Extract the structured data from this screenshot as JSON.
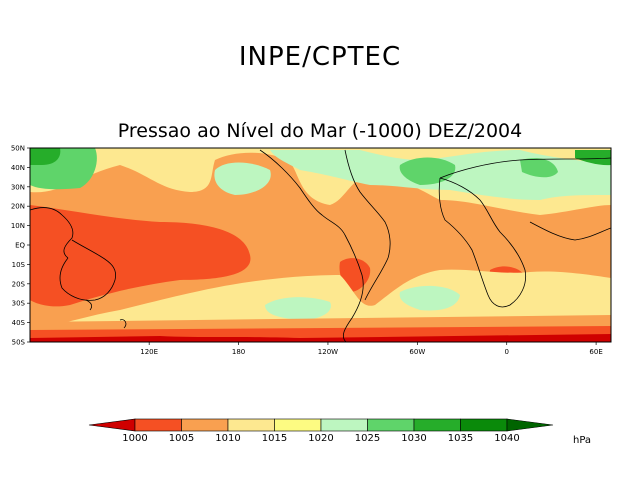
{
  "header": {
    "title": "INPE/CPTEC",
    "subtitle": "Pressao ao Nível do Mar (-1000) DEZ/2004"
  },
  "map": {
    "lat_labels": [
      "50N",
      "40N",
      "30N",
      "20N",
      "10N",
      "EQ",
      "10S",
      "20S",
      "30S",
      "40S",
      "50S"
    ],
    "lon_labels": [
      "120E",
      "180",
      "120W",
      "60W",
      "0",
      "60E"
    ],
    "lat_range": [
      -50,
      50
    ],
    "lon_range": [
      40,
      430
    ],
    "land_color": "#000000",
    "features": [
      "High pressure over North Pacific",
      "High pressure over North Atlantic",
      "Subtropical high South Pacific",
      "Subtropical high South Atlantic",
      "Low pressure Southern Ocean"
    ]
  },
  "colorbar": {
    "levels": [
      "1000",
      "1005",
      "1010",
      "1015",
      "1020",
      "1025",
      "1030",
      "1035",
      "1040"
    ],
    "colors": [
      "#cf0000",
      "#f55023",
      "#f9a050",
      "#fde890",
      "#fdfb82",
      "#bdf6c0",
      "#5fd46a",
      "#26ad2a",
      "#0a8a0a",
      "#006400"
    ],
    "unit": "hPa"
  }
}
